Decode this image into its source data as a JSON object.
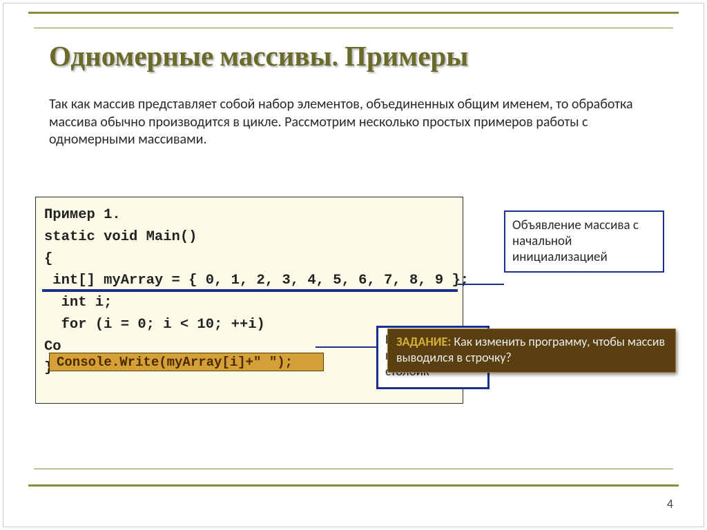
{
  "title": "Одномерные массивы. Примеры",
  "intro": "Так как массив представляет собой набор элементов, объединенных общим именем, то обработка массива обычно производится в цикле. Рассмотрим несколько простых примеров работы с одномерными массивами.",
  "code": {
    "l1": "Пример 1.",
    "l2": "static void Main()",
    "l3": "{",
    "l4": " int[] myArray = { 0, 1, 2, 3, 4, 5, 6, 7, 8, 9 };",
    "l5": "  int i;",
    "l6": "  for (i = 0; i < 10; ++i)",
    "l7": "Co",
    "l8": "}"
  },
  "highlight": "Console.Write(myArray[i]+\" \");",
  "annot_top": "Объявление массива с начальной инициализацией",
  "annot_bottom_l1": "В",
  "annot_bottom_l2": "н",
  "annot_bottom_l3": "столбик",
  "task_label": "ЗАДАНИЕ:",
  "task_text": " Как изменить программу, чтобы массив выводился в строчку?",
  "page": "4",
  "colors": {
    "frame": "#8a8a39",
    "title": "#6a6a2a",
    "code_bg": "#fbfbe8",
    "accent_blue": "#1b2f8f",
    "highlight_bg": "#d6a038",
    "task_bg": "#5a4010",
    "task_label": "#d6b038"
  }
}
